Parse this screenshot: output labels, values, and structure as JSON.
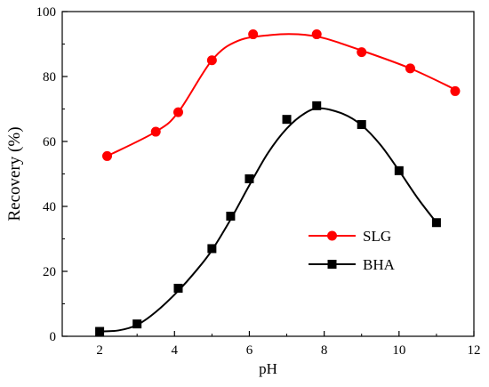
{
  "chart_data": {
    "type": "line",
    "xlabel": "pH",
    "ylabel": "Recovery (%)",
    "xlim": [
      1,
      12
    ],
    "ylim": [
      0,
      100
    ],
    "x_ticks": [
      2,
      4,
      6,
      8,
      10,
      12
    ],
    "y_ticks": [
      0,
      20,
      40,
      60,
      80,
      100
    ],
    "legend_position": "right-middle",
    "series": [
      {
        "name": "SLG",
        "color": "#ff0000",
        "marker": "circle",
        "x": [
          2.2,
          3.5,
          4.1,
          5.0,
          6.1,
          7.8,
          9.0,
          10.3,
          11.5
        ],
        "y": [
          55.5,
          63.0,
          69.0,
          85.0,
          93.0,
          93.0,
          87.5,
          82.5,
          75.5
        ],
        "curve": [
          [
            2.2,
            55.5
          ],
          [
            3.5,
            63.0
          ],
          [
            4.1,
            69.0
          ],
          [
            5.0,
            85.0
          ],
          [
            5.7,
            91.0
          ],
          [
            6.6,
            92.8
          ],
          [
            7.3,
            93.0
          ],
          [
            8.0,
            91.8
          ],
          [
            9.0,
            88.0
          ],
          [
            10.3,
            82.5
          ],
          [
            11.5,
            76.0
          ]
        ]
      },
      {
        "name": "BHA",
        "color": "#000000",
        "marker": "square",
        "x": [
          2.0,
          3.0,
          4.1,
          5.0,
          5.5,
          6.0,
          7.0,
          7.8,
          9.0,
          10.0,
          11.0
        ],
        "y": [
          1.5,
          3.8,
          14.8,
          27.0,
          37.0,
          48.5,
          66.8,
          71.0,
          65.2,
          51.0,
          35.0
        ],
        "curve": [
          [
            2.0,
            1.5
          ],
          [
            2.5,
            1.8
          ],
          [
            3.0,
            3.5
          ],
          [
            3.5,
            7.5
          ],
          [
            4.1,
            14.0
          ],
          [
            4.6,
            20.5
          ],
          [
            5.0,
            26.5
          ],
          [
            5.5,
            36.0
          ],
          [
            6.0,
            46.5
          ],
          [
            6.5,
            56.5
          ],
          [
            7.0,
            64.0
          ],
          [
            7.5,
            68.8
          ],
          [
            7.9,
            70.2
          ],
          [
            8.5,
            68.5
          ],
          [
            9.0,
            65.0
          ],
          [
            9.5,
            59.0
          ],
          [
            10.0,
            51.0
          ],
          [
            10.5,
            42.5
          ],
          [
            11.0,
            35.0
          ]
        ]
      }
    ]
  }
}
